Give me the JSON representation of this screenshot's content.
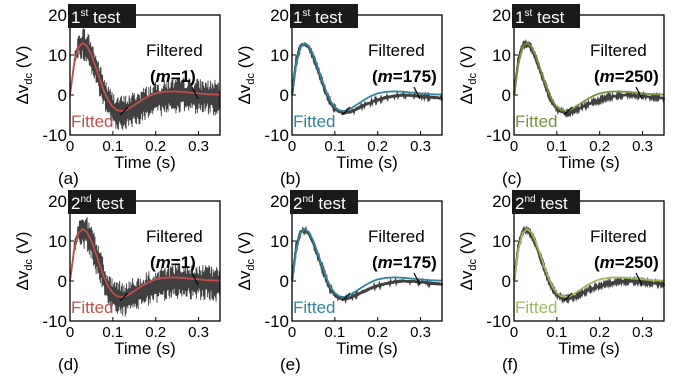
{
  "chart_data": [
    {
      "type": "line",
      "panel": "(a)",
      "test_label": "1",
      "test_sup": "st",
      "test_rest": " test",
      "filtered_label": "Filtered",
      "m_label": "(m=1)",
      "m_value": "1",
      "fitted_label": "Fitted",
      "fitted_color": "#c0504d",
      "xlabel": "Time (s)",
      "ylabel_main": "Δv",
      "ylabel_sub": "dc",
      "ylabel_unit": " (V)",
      "xlim": [
        0,
        0.35
      ],
      "ylim": [
        -10,
        20
      ],
      "xticks": [
        "0",
        "0.1",
        "0.2",
        "0.3"
      ],
      "yticks": [
        "-10",
        "0",
        "10",
        "20"
      ],
      "noise": 4.5,
      "grid": false
    },
    {
      "type": "line",
      "panel": "(b)",
      "test_label": "1",
      "test_sup": "st",
      "test_rest": " test",
      "filtered_label": "Filtered",
      "m_label": "(m=175)",
      "m_value": "175",
      "fitted_label": "Fitted",
      "fitted_color": "#31859c",
      "xlabel": "Time (s)",
      "ylabel_main": "Δv",
      "ylabel_sub": "dc",
      "ylabel_unit": " (V)",
      "xlim": [
        0,
        0.35
      ],
      "ylim": [
        -10,
        20
      ],
      "xticks": [
        "0",
        "0.1",
        "0.2",
        "0.3"
      ],
      "yticks": [
        "-10",
        "0",
        "10",
        "20"
      ],
      "noise": 0.4,
      "grid": false
    },
    {
      "type": "line",
      "panel": "(c)",
      "test_label": "1",
      "test_sup": "st",
      "test_rest": " test",
      "filtered_label": "Filtered",
      "m_label": "(m=250)",
      "m_value": "250",
      "fitted_label": "Fitted",
      "fitted_color": "#77933c",
      "xlabel": "Time (s)",
      "ylabel_main": "Δv",
      "ylabel_sub": "dc",
      "ylabel_unit": " (V)",
      "xlim": [
        0,
        0.35
      ],
      "ylim": [
        -10,
        20
      ],
      "xticks": [
        "0",
        "0.1",
        "0.2",
        "0.3"
      ],
      "yticks": [
        "-10",
        "0",
        "10",
        "20"
      ],
      "noise": 0.3,
      "grid": false
    },
    {
      "type": "line",
      "panel": "(d)",
      "test_label": "2",
      "test_sup": "nd",
      "test_rest": " test",
      "filtered_label": "Filtered",
      "m_label": "(m=1)",
      "m_value": "1",
      "fitted_label": "Fitted",
      "fitted_color": "#c0504d",
      "xlabel": "Time (s)",
      "ylabel_main": "Δv",
      "ylabel_sub": "dc",
      "ylabel_unit": " (V)",
      "xlim": [
        0,
        0.35
      ],
      "ylim": [
        -10,
        20
      ],
      "xticks": [
        "0",
        "0.1",
        "0.2",
        "0.3"
      ],
      "yticks": [
        "-10",
        "0",
        "10",
        "20"
      ],
      "noise": 4.5,
      "grid": false
    },
    {
      "type": "line",
      "panel": "(e)",
      "test_label": "2",
      "test_sup": "nd",
      "test_rest": " test",
      "filtered_label": "Filtered",
      "m_label": "(m=175)",
      "m_value": "175",
      "fitted_label": "Fitted",
      "fitted_color": "#31859c",
      "xlabel": "Time (s)",
      "ylabel_main": "Δv",
      "ylabel_sub": "dc",
      "ylabel_unit": " (V)",
      "xlim": [
        0,
        0.35
      ],
      "ylim": [
        -10,
        20
      ],
      "xticks": [
        "0",
        "0.1",
        "0.2",
        "0.3"
      ],
      "yticks": [
        "-10",
        "0",
        "10",
        "20"
      ],
      "noise": 0.4,
      "grid": false
    },
    {
      "type": "line",
      "panel": "(f)",
      "test_label": "2",
      "test_sup": "nd",
      "test_rest": " test",
      "filtered_label": "Filtered",
      "m_label": "(m=250)",
      "m_value": "250",
      "fitted_label": "Fitted",
      "fitted_color": "#9bbb59",
      "xlabel": "Time (s)",
      "ylabel_main": "Δv",
      "ylabel_sub": "dc",
      "ylabel_unit": " (V)",
      "xlim": [
        0,
        0.35
      ],
      "ylim": [
        -10,
        20
      ],
      "xticks": [
        "0",
        "0.1",
        "0.2",
        "0.3"
      ],
      "yticks": [
        "-10",
        "0",
        "10",
        "20"
      ],
      "noise": 0.3,
      "grid": false
    }
  ],
  "series_style": {
    "filtered_color": "#404040"
  },
  "fitted_curve": {
    "t": [
      0,
      0.01,
      0.02,
      0.03,
      0.04,
      0.05,
      0.06,
      0.07,
      0.08,
      0.09,
      0.1,
      0.11,
      0.12,
      0.13,
      0.14,
      0.15,
      0.16,
      0.17,
      0.18,
      0.19,
      0.2,
      0.22,
      0.24,
      0.26,
      0.28,
      0.3,
      0.32,
      0.35
    ],
    "v": [
      0,
      8,
      12,
      13,
      12.2,
      10,
      7,
      3.8,
      0.8,
      -1.5,
      -3,
      -3.8,
      -4,
      -3.8,
      -3.2,
      -2.5,
      -1.8,
      -1.1,
      -0.5,
      0,
      0.4,
      0.8,
      0.9,
      0.8,
      0.6,
      0.4,
      0.2,
      0.1
    ]
  },
  "filtered_curve": {
    "t": [
      0,
      0.01,
      0.02,
      0.03,
      0.04,
      0.05,
      0.06,
      0.07,
      0.08,
      0.09,
      0.1,
      0.11,
      0.12,
      0.13,
      0.14,
      0.15,
      0.16,
      0.17,
      0.18,
      0.19,
      0.2,
      0.22,
      0.24,
      0.26,
      0.28,
      0.3,
      0.32,
      0.35
    ],
    "v": [
      0,
      8.5,
      12.3,
      12.8,
      11.8,
      9.5,
      6.5,
      3.4,
      0.4,
      -2,
      -3.5,
      -4.2,
      -4.5,
      -4.4,
      -4,
      -3.5,
      -3,
      -2.5,
      -2,
      -1.6,
      -1.2,
      -0.6,
      -0.2,
      0,
      -0.1,
      -0.3,
      -0.5,
      -0.8
    ]
  }
}
